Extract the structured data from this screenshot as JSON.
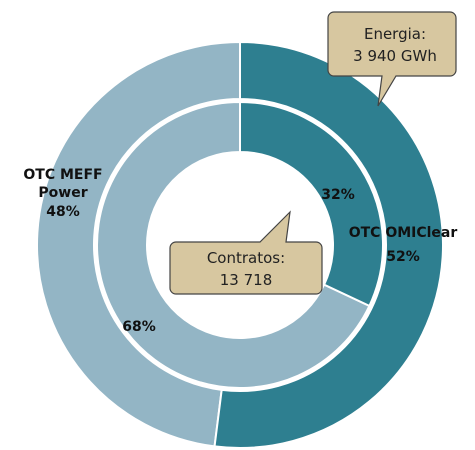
{
  "chart_data": {
    "type": "donut",
    "categories": [
      "OTC OMIClear",
      "OTC MEFF Power"
    ],
    "colors": [
      "#2e7f90",
      "#93b5c5"
    ],
    "rings": [
      {
        "name": "Energia:",
        "total": 3940,
        "total_label": "3 940 GWh",
        "values": [
          52,
          48
        ],
        "value_labels": [
          "52%",
          "48%"
        ]
      },
      {
        "name": "Contratos:",
        "total": 13718,
        "total_label": "13 718",
        "values": [
          32,
          68
        ],
        "value_labels": [
          "32%",
          "68%"
        ]
      }
    ]
  }
}
